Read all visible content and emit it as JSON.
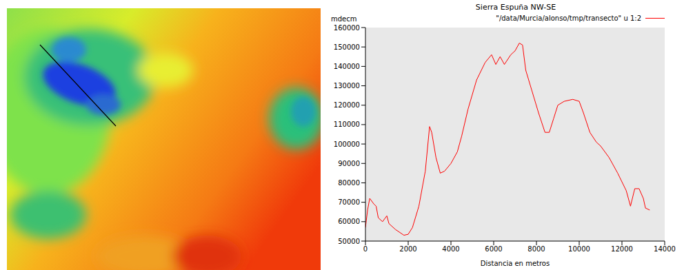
{
  "chart_data": {
    "type": "line",
    "title": "Sierra Espuña NW-SE",
    "x_label": "Distancia en metros",
    "y_label": "mdecm",
    "x": [
      0,
      100,
      200,
      400,
      500,
      600,
      800,
      1000,
      1100,
      1400,
      1800,
      2000,
      2200,
      2500,
      2800,
      3000,
      3100,
      3300,
      3500,
      3700,
      4000,
      4300,
      4500,
      4800,
      5200,
      5600,
      5900,
      6100,
      6300,
      6500,
      6800,
      7000,
      7200,
      7350,
      7500,
      7800,
      8100,
      8400,
      8600,
      8800,
      9000,
      9300,
      9700,
      10000,
      10200,
      10500,
      10800,
      11000,
      11400,
      11800,
      12200,
      12400,
      12600,
      12800,
      13000,
      13100,
      13300
    ],
    "series": [
      {
        "name": "\"/data/Murcia/alonso/tmp/transecto\" u 1:2",
        "color": "#ff0000",
        "values": [
          57000,
          66000,
          72000,
          69000,
          68000,
          62000,
          60000,
          63000,
          59000,
          56000,
          53000,
          53500,
          57000,
          68000,
          86000,
          109000,
          106000,
          93000,
          85000,
          86000,
          90000,
          96000,
          104000,
          118000,
          133000,
          142000,
          146000,
          141000,
          145000,
          141000,
          146000,
          148000,
          152000,
          151000,
          138000,
          127000,
          116000,
          106000,
          106000,
          113000,
          120000,
          122000,
          123000,
          122000,
          116000,
          106000,
          101000,
          99000,
          93000,
          85000,
          76000,
          68000,
          77000,
          77000,
          72000,
          67000,
          66000
        ]
      }
    ],
    "xlim": [
      0,
      14000
    ],
    "ylim": [
      50000,
      160000
    ],
    "xticks": [
      0,
      2000,
      4000,
      6000,
      8000,
      10000,
      12000,
      14000
    ],
    "yticks": [
      50000,
      60000,
      70000,
      80000,
      90000,
      100000,
      110000,
      120000,
      130000,
      140000,
      150000,
      160000
    ],
    "grid": false,
    "legend": "top-right"
  }
}
